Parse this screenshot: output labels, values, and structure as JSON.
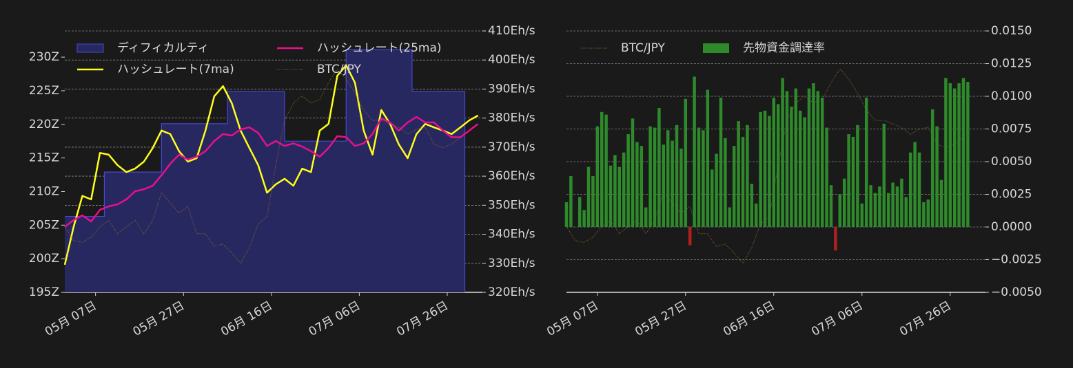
{
  "chart_data": [
    {
      "type": "line",
      "grid": "y2",
      "ytick_side": "left",
      "legend_columns": 2,
      "xlim": [
        "04-30",
        "08-03"
      ],
      "xticks": [
        {
          "value": "05-07",
          "label": "05月 07日"
        },
        {
          "value": "05-27",
          "label": "05月 27日"
        },
        {
          "value": "06-16",
          "label": "06月 16日"
        },
        {
          "value": "07-06",
          "label": "07月 06日"
        },
        {
          "value": "07-26",
          "label": "07月 26日"
        }
      ],
      "ylim": [
        195,
        233.9
      ],
      "yticks": [
        {
          "value": 195,
          "label": "195Z"
        },
        {
          "value": 200,
          "label": "200Z"
        },
        {
          "value": 205,
          "label": "205Z"
        },
        {
          "value": 210,
          "label": "210Z"
        },
        {
          "value": 215,
          "label": "215Z"
        },
        {
          "value": 220,
          "label": "220Z"
        },
        {
          "value": 225,
          "label": "225Z"
        },
        {
          "value": 230,
          "label": "230Z"
        }
      ],
      "y2lim": [
        320,
        410
      ],
      "y2ticks": [
        {
          "value": 320,
          "label": "320Eh/s"
        },
        {
          "value": 330,
          "label": "330Eh/s"
        },
        {
          "value": 340,
          "label": "340Eh/s"
        },
        {
          "value": 350,
          "label": "350Eh/s"
        },
        {
          "value": 360,
          "label": "360Eh/s"
        },
        {
          "value": 370,
          "label": "370Eh/s"
        },
        {
          "value": 380,
          "label": "380Eh/s"
        },
        {
          "value": 390,
          "label": "390Eh/s"
        },
        {
          "value": 400,
          "label": "400Eh/s"
        },
        {
          "value": 410,
          "label": "410Eh/s"
        }
      ],
      "y3lim": [
        13500000,
        18000000
      ],
      "series": [
        {
          "name": "ディフィカルティ",
          "kind": "step_area",
          "axis": "y",
          "color": "#4848d8",
          "fill_color": "#282860",
          "x": [
            "04-30",
            "05-09",
            "05-22",
            "06-06",
            "06-19",
            "07-03",
            "07-18",
            "07-30"
          ],
          "values": [
            206.3,
            212.9,
            220.1,
            224.9,
            217.5,
            231.1,
            224.9,
            224.9
          ]
        },
        {
          "name": "ハッシュレート(7ma)",
          "kind": "line",
          "axis": "y2",
          "color": "#ffff1a",
          "x": [
            "04-30",
            "05-02",
            "05-04",
            "05-06",
            "05-08",
            "05-10",
            "05-12",
            "05-14",
            "05-16",
            "05-18",
            "05-20",
            "05-22",
            "05-24",
            "05-26",
            "05-28",
            "05-30",
            "06-01",
            "06-03",
            "06-05",
            "06-07",
            "06-09",
            "06-11",
            "06-13",
            "06-15",
            "06-17",
            "06-19",
            "06-21",
            "06-23",
            "06-25",
            "06-27",
            "06-29",
            "07-01",
            "07-03",
            "07-05",
            "07-07",
            "07-09",
            "07-11",
            "07-13",
            "07-15",
            "07-17",
            "07-19",
            "07-21",
            "07-23",
            "07-25",
            "07-27",
            "07-29",
            "07-31",
            "08-02"
          ],
          "values": [
            329.5,
            342.5,
            353.2,
            352,
            368,
            367.4,
            363.8,
            361.4,
            362.6,
            365,
            369.7,
            375.7,
            374.5,
            368.6,
            365,
            366.2,
            375.7,
            387.5,
            391,
            385.1,
            375.7,
            369.7,
            363.8,
            354.3,
            357.2,
            359.1,
            356.7,
            362.6,
            361.4,
            375.7,
            378,
            394.6,
            398.2,
            392.2,
            375.7,
            367.4,
            382.8,
            378,
            370.9,
            366.2,
            374.5,
            378,
            376.8,
            375.7,
            374.5,
            376.8,
            379.2,
            380.9
          ]
        },
        {
          "name": "ハッシュレート(25ma)",
          "kind": "line",
          "axis": "y2",
          "color": "#e8108c",
          "x": [
            "04-30",
            "05-02",
            "05-04",
            "05-06",
            "05-08",
            "05-10",
            "05-12",
            "05-14",
            "05-16",
            "05-18",
            "05-20",
            "05-22",
            "05-24",
            "05-26",
            "05-28",
            "05-30",
            "06-01",
            "06-03",
            "06-05",
            "06-07",
            "06-09",
            "06-11",
            "06-13",
            "06-15",
            "06-17",
            "06-19",
            "06-21",
            "06-23",
            "06-25",
            "06-27",
            "06-29",
            "07-01",
            "07-03",
            "07-05",
            "07-07",
            "07-09",
            "07-11",
            "07-13",
            "07-15",
            "07-17",
            "07-19",
            "07-21",
            "07-23",
            "07-25",
            "07-27",
            "07-29",
            "07-31",
            "08-02"
          ],
          "values": [
            342.5,
            344.9,
            346.5,
            344.4,
            348.4,
            349.6,
            350.3,
            352,
            354.8,
            355.5,
            356.7,
            360.3,
            364.3,
            367.4,
            365.7,
            366.7,
            368.6,
            372.1,
            374.5,
            374,
            376.1,
            376.8,
            374.9,
            370.4,
            372.1,
            370.4,
            371.3,
            370.2,
            368.6,
            366.7,
            369.7,
            373.8,
            373.4,
            370.4,
            371.3,
            374.5,
            379.9,
            378.5,
            375.7,
            378.5,
            380.4,
            378.5,
            378.5,
            375.7,
            373.4,
            373.4,
            375.7,
            378
          ]
        },
        {
          "name": "BTC/JPY",
          "kind": "dotted",
          "axis": "y3",
          "color": "#8a6a2a",
          "x": [
            "04-30",
            "05-02",
            "05-04",
            "05-06",
            "05-08",
            "05-10",
            "05-12",
            "05-14",
            "05-16",
            "05-18",
            "05-20",
            "05-22",
            "05-24",
            "05-26",
            "05-28",
            "05-30",
            "06-01",
            "06-03",
            "06-05",
            "06-07",
            "06-09",
            "06-11",
            "06-13",
            "06-15",
            "06-17",
            "06-19",
            "06-21",
            "06-23",
            "06-25",
            "06-27",
            "06-29",
            "07-01",
            "07-03",
            "07-05",
            "07-07",
            "07-09",
            "07-11",
            "07-13",
            "07-15",
            "07-17",
            "07-19",
            "07-21",
            "07-23",
            "07-25",
            "07-27",
            "07-29",
            "07-31",
            "08-02"
          ],
          "values": [
            14630000,
            14390000,
            14360000,
            14450000,
            14630000,
            14740000,
            14510000,
            14630000,
            14740000,
            14510000,
            14740000,
            15220000,
            15040000,
            14860000,
            14980000,
            14510000,
            14510000,
            14290000,
            14330000,
            14180000,
            14000000,
            14270000,
            14680000,
            14800000,
            15690000,
            16460000,
            16760000,
            16880000,
            16760000,
            16820000,
            17110000,
            17350000,
            17170000,
            16930000,
            16640000,
            16460000,
            16460000,
            16400000,
            16340000,
            16220000,
            16310000,
            16340000,
            16050000,
            15990000,
            16050000,
            16170000,
            null,
            null
          ]
        }
      ]
    },
    {
      "type": "bar",
      "grid": "y",
      "ytick_side": "right",
      "legend_columns": 2,
      "xlim": [
        "04-30",
        "08-03"
      ],
      "xticks": [
        {
          "value": "05-07",
          "label": "05月 07日"
        },
        {
          "value": "05-27",
          "label": "05月 27日"
        },
        {
          "value": "06-16",
          "label": "06月 16日"
        },
        {
          "value": "07-06",
          "label": "07月 06日"
        },
        {
          "value": "07-26",
          "label": "07月 26日"
        }
      ],
      "ylim": [
        -0.005,
        0.015
      ],
      "yticks": [
        {
          "value": -0.005,
          "label": "−0.0050"
        },
        {
          "value": -0.0025,
          "label": "−0.0025"
        },
        {
          "value": 0,
          "label": "0.0000"
        },
        {
          "value": 0.0025,
          "label": "0.0025"
        },
        {
          "value": 0.005,
          "label": "0.0050"
        },
        {
          "value": 0.0075,
          "label": "0.0075"
        },
        {
          "value": 0.01,
          "label": "0.0100"
        },
        {
          "value": 0.0125,
          "label": "0.0125"
        },
        {
          "value": 0.015,
          "label": "0.0150"
        }
      ],
      "y2lim": [
        13500000,
        18000000
      ],
      "series": [
        {
          "name": "BTC/JPY",
          "kind": "dotted",
          "axis": "y2",
          "color": "#8a6a2a",
          "x": [
            "04-30",
            "05-02",
            "05-04",
            "05-06",
            "05-08",
            "05-10",
            "05-12",
            "05-14",
            "05-16",
            "05-18",
            "05-20",
            "05-22",
            "05-24",
            "05-26",
            "05-28",
            "05-30",
            "06-01",
            "06-03",
            "06-05",
            "06-07",
            "06-09",
            "06-11",
            "06-13",
            "06-15",
            "06-17",
            "06-19",
            "06-21",
            "06-23",
            "06-25",
            "06-27",
            "06-29",
            "07-01",
            "07-03",
            "07-05",
            "07-07",
            "07-09",
            "07-11",
            "07-13",
            "07-15",
            "07-17",
            "07-19",
            "07-21",
            "07-23",
            "07-25",
            "07-27",
            "07-29",
            "07-31",
            "08-02"
          ],
          "values": [
            14630000,
            14390000,
            14360000,
            14450000,
            14630000,
            14740000,
            14510000,
            14630000,
            14740000,
            14510000,
            14740000,
            15220000,
            15040000,
            14860000,
            14980000,
            14510000,
            14510000,
            14290000,
            14330000,
            14180000,
            14000000,
            14270000,
            14680000,
            14800000,
            15690000,
            16460000,
            16760000,
            16880000,
            16760000,
            16820000,
            17110000,
            17350000,
            17170000,
            16930000,
            16640000,
            16460000,
            16460000,
            16400000,
            16340000,
            16220000,
            16310000,
            16340000,
            16050000,
            15990000,
            16050000,
            16170000,
            null,
            null
          ]
        },
        {
          "name": "先物資金調達率",
          "kind": "bar",
          "axis": "y",
          "color": "#2e8a2a",
          "negative_color": "#b02020",
          "x": [
            "04-30",
            "05-01",
            "05-02",
            "05-03",
            "05-04",
            "05-05",
            "05-06",
            "05-07",
            "05-08",
            "05-09",
            "05-10",
            "05-11",
            "05-12",
            "05-13",
            "05-14",
            "05-15",
            "05-16",
            "05-17",
            "05-18",
            "05-19",
            "05-20",
            "05-21",
            "05-22",
            "05-23",
            "05-24",
            "05-25",
            "05-26",
            "05-27",
            "05-28",
            "05-29",
            "05-30",
            "05-31",
            "06-01",
            "06-02",
            "06-03",
            "06-04",
            "06-05",
            "06-06",
            "06-07",
            "06-08",
            "06-09",
            "06-10",
            "06-11",
            "06-12",
            "06-13",
            "06-14",
            "06-15",
            "06-16",
            "06-17",
            "06-18",
            "06-19",
            "06-20",
            "06-21",
            "06-22",
            "06-23",
            "06-24",
            "06-25",
            "06-26",
            "06-27",
            "06-28",
            "06-29",
            "06-30",
            "07-01",
            "07-02",
            "07-03",
            "07-04",
            "07-05",
            "07-06",
            "07-07",
            "07-08",
            "07-09",
            "07-10",
            "07-11",
            "07-12",
            "07-13",
            "07-14",
            "07-15",
            "07-16",
            "07-17",
            "07-18",
            "07-19",
            "07-20",
            "07-21",
            "07-22",
            "07-23",
            "07-24",
            "07-25",
            "07-26",
            "07-27",
            "07-28",
            "07-29",
            "07-30"
          ],
          "values": [
            0.0019,
            0.0039,
            0,
            0.0023,
            0.0013,
            0.0046,
            0.0039,
            0.0077,
            0.0088,
            0.0086,
            0.0047,
            0.0055,
            0.0046,
            0.0057,
            0.0071,
            0.0083,
            0.0065,
            0.0062,
            0.0015,
            0.0077,
            0.0076,
            0.0091,
            0.0063,
            0.0074,
            0.0066,
            0.0078,
            0.006,
            0.0098,
            -0.0014,
            0.0115,
            0.0076,
            0.0074,
            0.0105,
            0.0044,
            0.0056,
            0.0099,
            0.0068,
            0.0015,
            0.0062,
            0.0081,
            0.0069,
            0.0078,
            0.0033,
            0.0018,
            0.0088,
            0.0089,
            0.0085,
            0.0099,
            0.0094,
            0.0114,
            0.0104,
            0.0092,
            0.0106,
            0.0089,
            0.0084,
            0.0106,
            0.011,
            0.0104,
            0.0099,
            0.0076,
            0.0032,
            -0.0018,
            0.0025,
            0.0037,
            0.0071,
            0.0069,
            0.0078,
            0.0018,
            0.0099,
            0.0032,
            0.0026,
            0.0031,
            0.0079,
            0.0026,
            0.0034,
            0.0031,
            0.0037,
            0.0023,
            0.0057,
            0.0065,
            0.0057,
            0.0019,
            0.0021,
            0.009,
            0.0077,
            0.0036,
            0.0114,
            0.011,
            0.0106,
            0.011,
            0.0114,
            0.0111
          ]
        }
      ]
    }
  ]
}
